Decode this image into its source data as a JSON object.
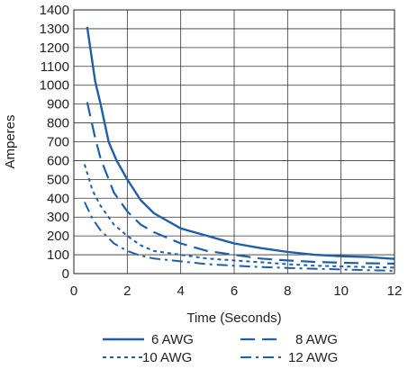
{
  "chart_data": {
    "type": "line",
    "title": "",
    "xlabel": "Time (Seconds)",
    "ylabel": "Amperes",
    "xlim": [
      0,
      12
    ],
    "ylim": [
      0,
      1400
    ],
    "x_ticks": [
      0,
      2,
      4,
      6,
      8,
      10,
      12
    ],
    "x_tick_labels": [
      "0",
      "2",
      "4",
      "6",
      "8",
      "10",
      "12"
    ],
    "y_ticks": [
      0,
      100,
      200,
      300,
      400,
      500,
      600,
      700,
      800,
      900,
      1000,
      1100,
      1200,
      1300,
      1400
    ],
    "y_tick_labels": [
      "0",
      "100",
      "200",
      "300",
      "400",
      "500",
      "600",
      "700",
      "800",
      "900",
      "1000",
      "1100",
      "1200",
      "1300",
      "1400"
    ],
    "grid": true,
    "legend_position": "bottom",
    "line_color": "#1f5fa8",
    "series": [
      {
        "name": "6 AWG",
        "style": "solid",
        "x": [
          0.5,
          0.8,
          1.0,
          1.3,
          1.6,
          2.0,
          2.5,
          3.0,
          4.0,
          5.0,
          6.0,
          7.0,
          8.0,
          9.0,
          10.0,
          11.0,
          12.0
        ],
        "y": [
          1310,
          1020,
          900,
          700,
          600,
          500,
          390,
          320,
          240,
          200,
          160,
          135,
          115,
          100,
          92,
          88,
          78
        ]
      },
      {
        "name": "8 AWG",
        "style": "dashed",
        "x": [
          0.5,
          0.8,
          1.0,
          1.5,
          2.0,
          2.5,
          3.0,
          4.0,
          5.0,
          6.0,
          7.0,
          8.0,
          9.0,
          10.0,
          11.0,
          12.0
        ],
        "y": [
          910,
          720,
          610,
          430,
          330,
          260,
          220,
          160,
          120,
          100,
          80,
          70,
          62,
          58,
          55,
          53
        ]
      },
      {
        "name": "10 AWG",
        "style": "dotted",
        "x": [
          0.4,
          0.7,
          1.0,
          1.5,
          2.0,
          2.5,
          3.0,
          4.0,
          5.0,
          6.0,
          7.0,
          8.0,
          9.0,
          10.0,
          11.0,
          12.0
        ],
        "y": [
          580,
          440,
          360,
          260,
          200,
          150,
          120,
          100,
          80,
          70,
          60,
          50,
          42,
          38,
          35,
          32
        ]
      },
      {
        "name": "12 AWG",
        "style": "dashdot",
        "x": [
          0.4,
          0.7,
          1.0,
          1.5,
          2.0,
          2.5,
          3.0,
          4.0,
          5.0,
          6.0,
          7.0,
          8.0,
          9.0,
          10.0,
          11.0,
          12.0
        ],
        "y": [
          380,
          290,
          230,
          160,
          120,
          95,
          80,
          65,
          50,
          42,
          35,
          30,
          26,
          22,
          18,
          15
        ]
      }
    ]
  }
}
